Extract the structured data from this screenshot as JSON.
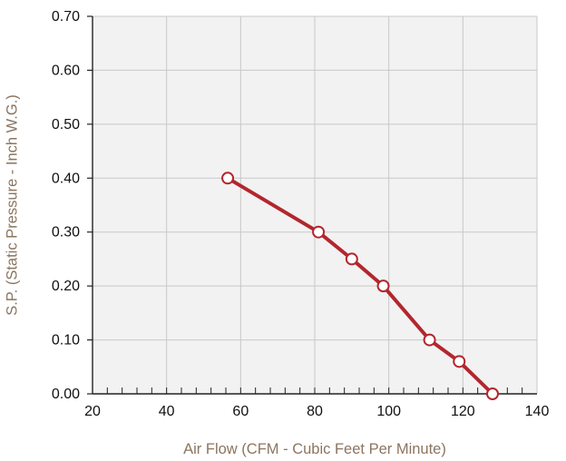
{
  "chart_data": {
    "type": "line",
    "title": "",
    "xlabel": "Air Flow (CFM - Cubic Feet Per Minute)",
    "ylabel": "S.P. (Static Pressure - Inch W.G.)",
    "xlim": [
      20,
      140
    ],
    "ylim": [
      0,
      0.7
    ],
    "x_ticks": [
      "20",
      "40",
      "60",
      "80",
      "100",
      "120",
      "140"
    ],
    "y_ticks": [
      "0.00",
      "0.10",
      "0.20",
      "0.30",
      "0.40",
      "0.50",
      "0.60",
      "0.70"
    ],
    "x_tick_values": [
      20,
      40,
      60,
      80,
      100,
      120,
      140
    ],
    "y_tick_values": [
      0,
      0.1,
      0.2,
      0.3,
      0.4,
      0.5,
      0.6,
      0.7
    ],
    "x_minor_step": 4,
    "grid": true,
    "legend": "none",
    "colors": {
      "line": "#b3262e",
      "marker_fill": "#ffffff",
      "plot_background": "#f2f2f2",
      "grid": "#c8c8c8",
      "axis": "#222222",
      "axis_title": "#8a7560"
    },
    "series": [
      {
        "x": [
          56.5,
          81,
          90,
          98.5,
          111,
          119,
          128
        ],
        "y": [
          0.4,
          0.3,
          0.25,
          0.2,
          0.1,
          0.06,
          0
        ]
      }
    ]
  }
}
